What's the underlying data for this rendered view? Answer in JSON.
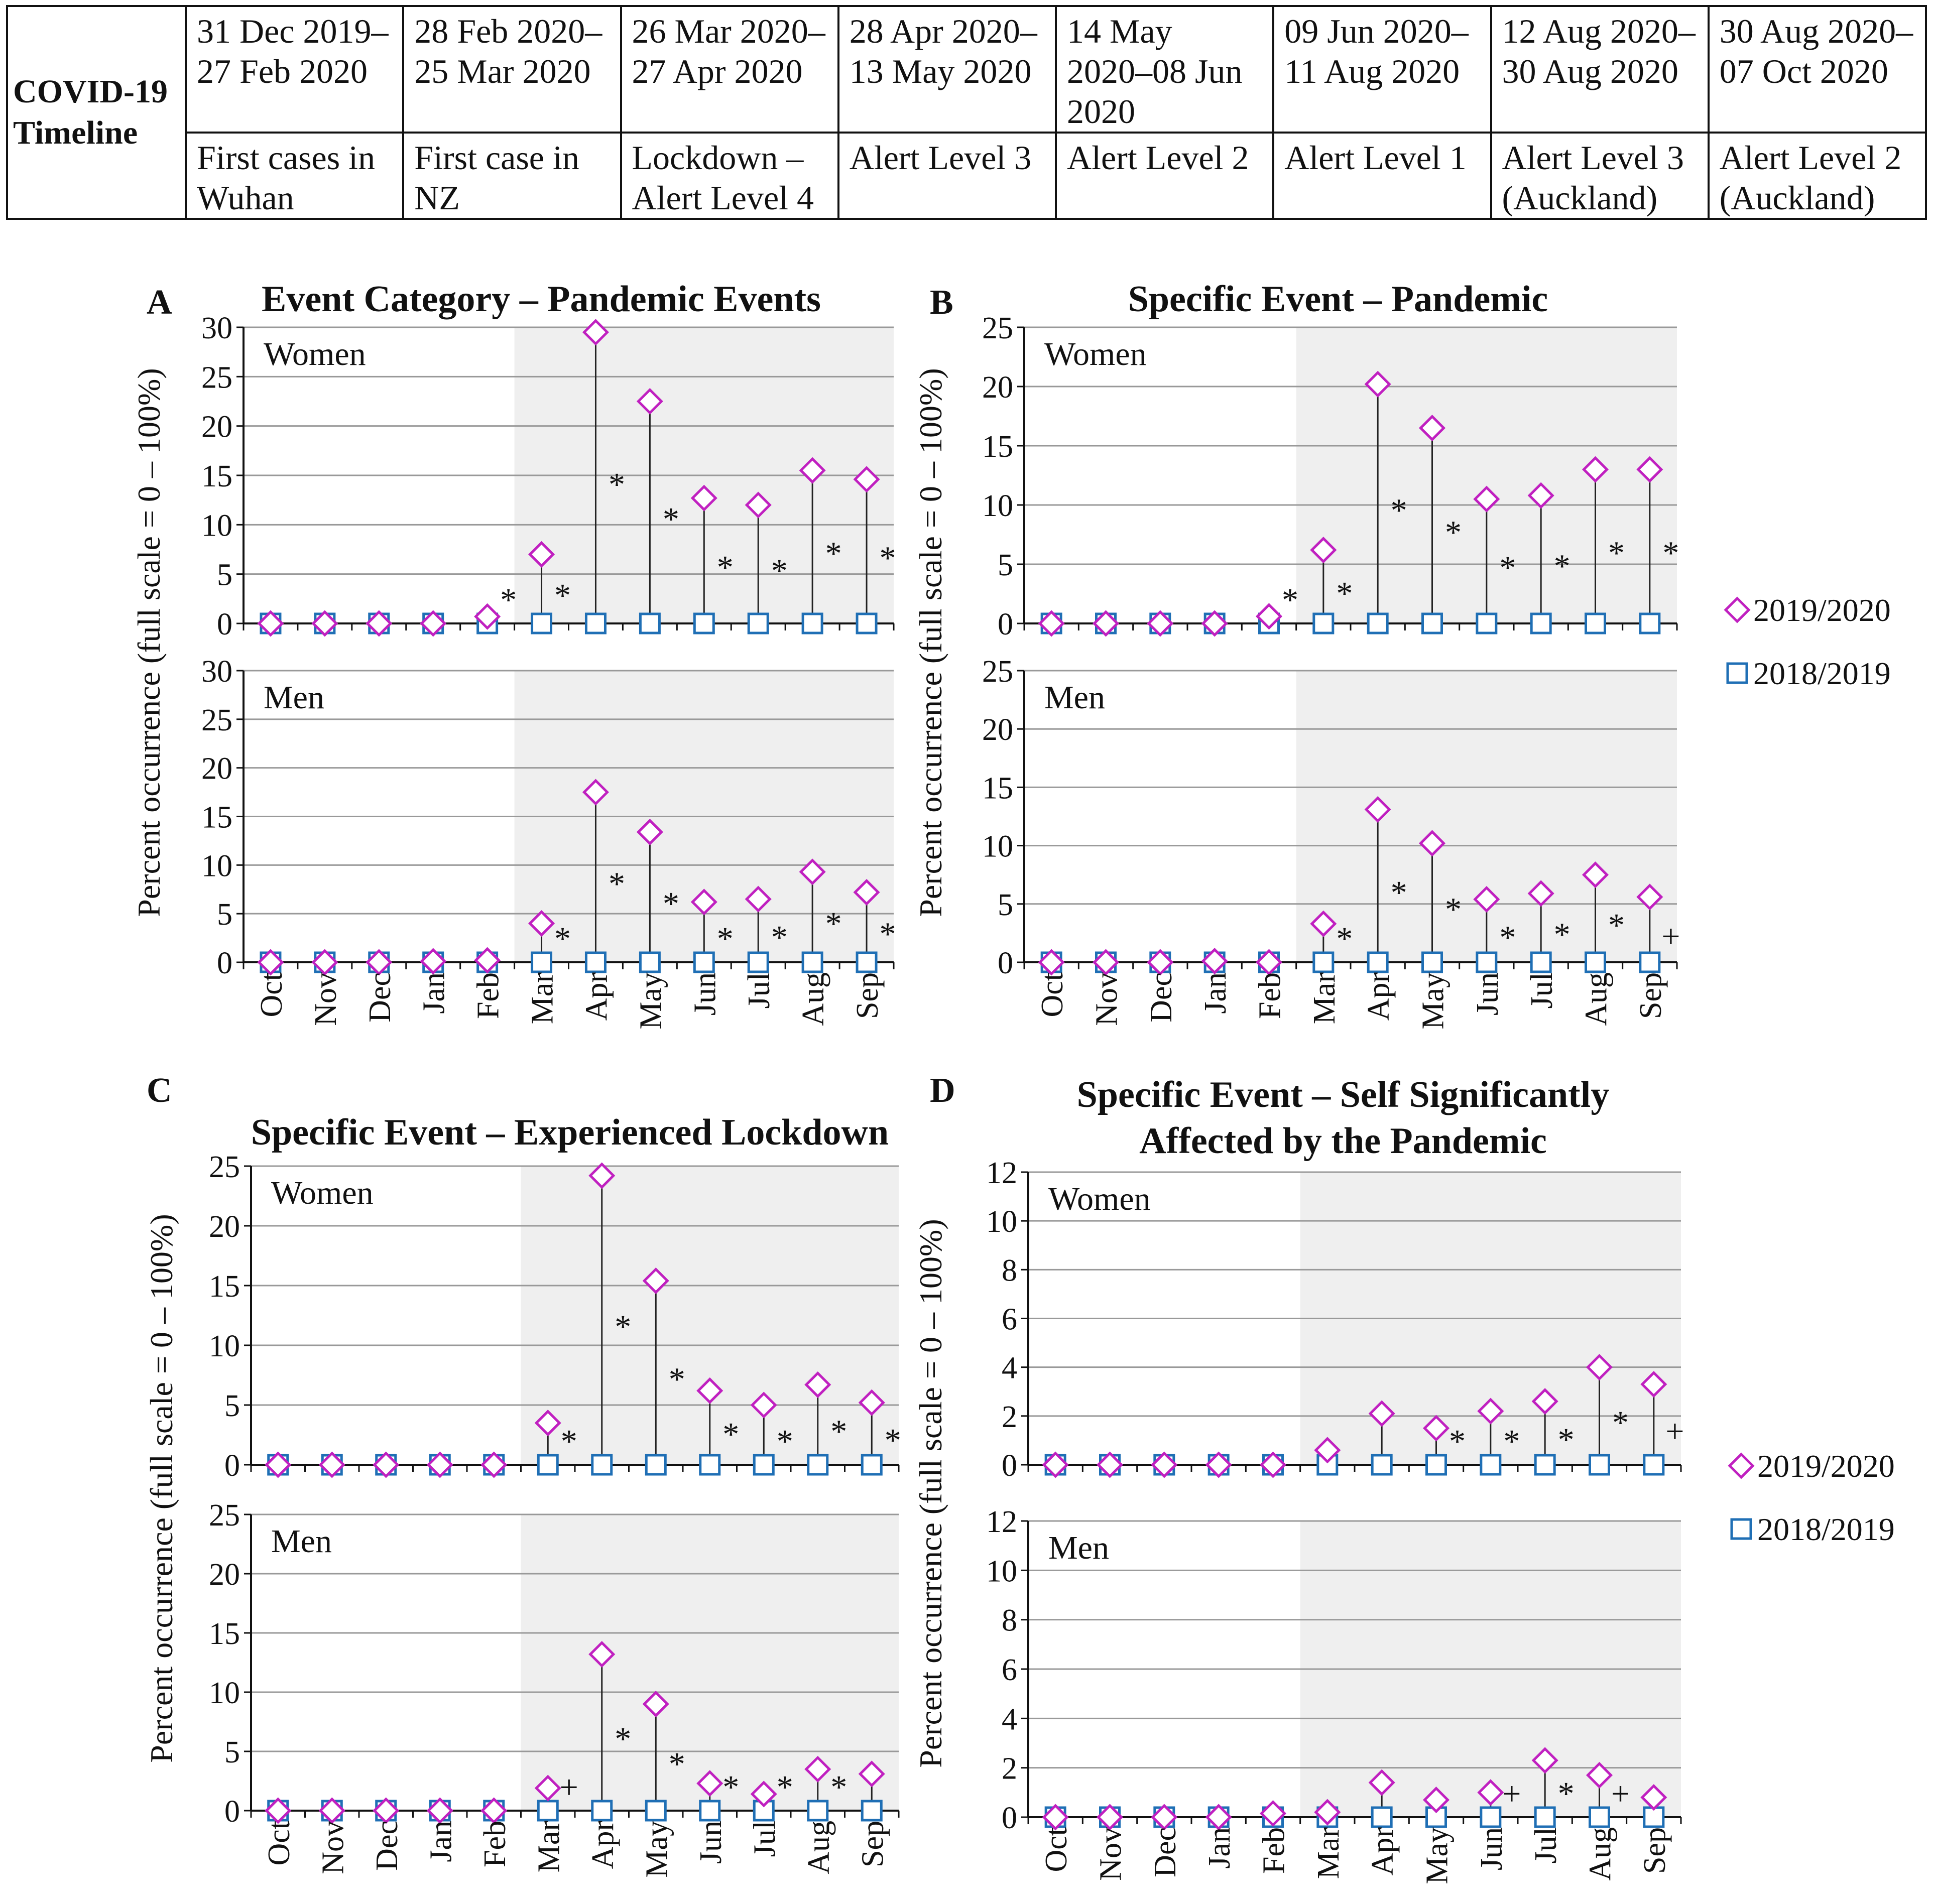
{
  "timeline": {
    "heading_line1": "COVID-19",
    "heading_line2": "Timeline",
    "periods": [
      {
        "dates": "31 Dec 2019–27 Feb 2020",
        "event": "First cases in Wuhan"
      },
      {
        "dates": "28 Feb 2020–25 Mar 2020",
        "event": "First case in NZ"
      },
      {
        "dates": "26 Mar 2020–27 Apr 2020",
        "event": "Lockdown – Alert Level 4"
      },
      {
        "dates": "28 Apr 2020–13 May 2020",
        "event": "Alert Level 3"
      },
      {
        "dates": "14 May 2020–08 Jun 2020",
        "event": "Alert Level 2"
      },
      {
        "dates": "09 Jun 2020–11 Aug 2020",
        "event": "Alert Level 1"
      },
      {
        "dates": "12 Aug 2020–30 Aug 2020",
        "event": "Alert Level 3 (Auckland)"
      },
      {
        "dates": "30 Aug 2020–07 Oct 2020",
        "event": "Alert Level 2 (Auckland)"
      }
    ]
  },
  "colors": {
    "series_2019_2020": "#c020c0",
    "series_2018_2019": "#1f6fb5",
    "shading": "#efefef",
    "gridline": "#999999",
    "stem": "#222222"
  },
  "chart_data": [
    {
      "type": "scatter",
      "panel_letter": "A",
      "title": "Event Category – Pandemic Events",
      "ylabel": "Percent occurrence (full scale = 0 – 100%)",
      "categories": [
        "Oct",
        "Nov",
        "Dec",
        "Jan",
        "Feb",
        "Mar",
        "Apr",
        "May",
        "Jun",
        "Jul",
        "Aug",
        "Sep"
      ],
      "shaded_from": "Mar",
      "ylim": [
        0,
        30
      ],
      "yticks": [
        "0",
        "5",
        "10",
        "15",
        "20",
        "25",
        "30"
      ],
      "legend": [
        "2019/2020",
        "2018/2019"
      ],
      "subplots": [
        {
          "label": "Women",
          "series": [
            {
              "name": "2019/2020",
              "values": [
                0,
                0,
                0,
                0,
                0.7,
                7.0,
                29.5,
                22.5,
                12.7,
                12.0,
                15.5,
                14.6
              ]
            },
            {
              "name": "2018/2019",
              "values": [
                0,
                0,
                0,
                0,
                0,
                0,
                0,
                0,
                0,
                0,
                0,
                0
              ]
            }
          ],
          "markers": [
            "",
            "",
            "",
            "",
            "*",
            "*",
            "*",
            "*",
            "*",
            "*",
            "*",
            "*"
          ]
        },
        {
          "label": "Men",
          "series": [
            {
              "name": "2019/2020",
              "values": [
                0,
                0,
                0,
                0.1,
                0.2,
                4.0,
                17.5,
                13.4,
                6.2,
                6.5,
                9.3,
                7.2
              ]
            },
            {
              "name": "2018/2019",
              "values": [
                0,
                0,
                0,
                0,
                0,
                0,
                0,
                0,
                0,
                0,
                0,
                0
              ]
            }
          ],
          "markers": [
            "",
            "",
            "",
            "",
            "",
            "*",
            "*",
            "*",
            "*",
            "*",
            "*",
            "*"
          ]
        }
      ]
    },
    {
      "type": "scatter",
      "panel_letter": "B",
      "title": "Specific Event – Pandemic",
      "ylabel": "Percent occurrence (full scale = 0 – 100%)",
      "categories": [
        "Oct",
        "Nov",
        "Dec",
        "Jan",
        "Feb",
        "Mar",
        "Apr",
        "May",
        "Jun",
        "Jul",
        "Aug",
        "Sep"
      ],
      "shaded_from": "Mar",
      "ylim": [
        0,
        25
      ],
      "yticks": [
        "0",
        "5",
        "10",
        "15",
        "20",
        "25"
      ],
      "legend": [
        "2019/2020",
        "2018/2019"
      ],
      "subplots": [
        {
          "label": "Women",
          "series": [
            {
              "name": "2019/2020",
              "values": [
                0,
                0,
                0,
                0,
                0.6,
                6.2,
                20.2,
                16.5,
                10.5,
                10.8,
                13.0,
                13.0
              ]
            },
            {
              "name": "2018/2019",
              "values": [
                0,
                0,
                0,
                0,
                0,
                0,
                0,
                0,
                0,
                0,
                0,
                0
              ]
            }
          ],
          "markers": [
            "",
            "",
            "",
            "",
            "*",
            "*",
            "*",
            "*",
            "*",
            "*",
            "*",
            "*"
          ]
        },
        {
          "label": "Men",
          "series": [
            {
              "name": "2019/2020",
              "values": [
                0,
                0,
                0,
                0.1,
                0,
                3.3,
                13.1,
                10.2,
                5.4,
                5.9,
                7.5,
                5.6
              ]
            },
            {
              "name": "2018/2019",
              "values": [
                0,
                0,
                0,
                0,
                0,
                0,
                0,
                0,
                0,
                0,
                0,
                0
              ]
            }
          ],
          "markers": [
            "",
            "",
            "",
            "",
            "",
            "*",
            "*",
            "*",
            "*",
            "*",
            "*",
            "+"
          ]
        }
      ]
    },
    {
      "type": "scatter",
      "panel_letter": "C",
      "title": "Specific Event – Experienced Lockdown",
      "ylabel": "Percent occurrence (full scale = 0 – 100%)",
      "categories": [
        "Oct",
        "Nov",
        "Dec",
        "Jan",
        "Feb",
        "Mar",
        "Apr",
        "May",
        "Jun",
        "Jul",
        "Aug",
        "Sep"
      ],
      "shaded_from": "Mar",
      "ylim": [
        0,
        25
      ],
      "yticks": [
        "0",
        "5",
        "10",
        "15",
        "20",
        "25"
      ],
      "legend": [
        "2019/2020",
        "2018/2019"
      ],
      "subplots": [
        {
          "label": "Women",
          "series": [
            {
              "name": "2019/2020",
              "values": [
                0,
                0,
                0,
                0,
                0,
                3.5,
                24.2,
                15.4,
                6.2,
                5.0,
                6.7,
                5.2
              ]
            },
            {
              "name": "2018/2019",
              "values": [
                0,
                0,
                0,
                0,
                0,
                0,
                0,
                0,
                0,
                0,
                0,
                0
              ]
            }
          ],
          "markers": [
            "",
            "",
            "",
            "",
            "",
            "*",
            "*",
            "*",
            "*",
            "*",
            "*",
            "*"
          ]
        },
        {
          "label": "Men",
          "series": [
            {
              "name": "2019/2020",
              "values": [
                0,
                0,
                0,
                0,
                0,
                1.9,
                13.2,
                9.0,
                2.3,
                1.4,
                3.5,
                3.1
              ]
            },
            {
              "name": "2018/2019",
              "values": [
                0,
                0,
                0,
                0,
                0,
                0,
                0,
                0,
                0,
                0,
                0,
                0
              ]
            }
          ],
          "markers": [
            "",
            "",
            "",
            "",
            "",
            "+",
            "*",
            "*",
            "*",
            "*",
            "*",
            ""
          ]
        }
      ]
    },
    {
      "type": "scatter",
      "panel_letter": "D",
      "title": "Specific Event – Self Significantly Affected by the Pandemic",
      "title_line1": "Specific Event – Self Significantly",
      "title_line2": "Affected by the Pandemic",
      "ylabel": "Percent occurrence (full scale = 0 – 100%)",
      "categories": [
        "Oct",
        "Nov",
        "Dec",
        "Jan",
        "Feb",
        "Mar",
        "Apr",
        "May",
        "Jun",
        "Jul",
        "Aug",
        "Sep"
      ],
      "shaded_from": "Mar",
      "ylim": [
        0,
        12
      ],
      "yticks": [
        "0",
        "2",
        "4",
        "6",
        "8",
        "10",
        "12"
      ],
      "legend": [
        "2019/2020",
        "2018/2019"
      ],
      "subplots": [
        {
          "label": "Women",
          "series": [
            {
              "name": "2019/2020",
              "values": [
                0,
                0,
                0,
                0,
                0,
                0.6,
                2.1,
                1.5,
                2.2,
                2.6,
                4.0,
                3.3
              ]
            },
            {
              "name": "2018/2019",
              "values": [
                0,
                0,
                0,
                0,
                0,
                0,
                0,
                0,
                0,
                0,
                0,
                0
              ]
            }
          ],
          "markers": [
            "",
            "",
            "",
            "",
            "",
            "",
            "",
            "*",
            "*",
            "*",
            "*",
            "+"
          ]
        },
        {
          "label": "Men",
          "series": [
            {
              "name": "2019/2020",
              "values": [
                0,
                0,
                0,
                0,
                0.15,
                0.2,
                1.4,
                0.7,
                1.0,
                2.3,
                1.7,
                0.8
              ]
            },
            {
              "name": "2018/2019",
              "values": [
                0,
                0,
                0,
                0,
                0,
                0,
                0,
                0,
                0,
                0,
                0,
                0
              ]
            }
          ],
          "markers": [
            "",
            "",
            "",
            "",
            "",
            "",
            "",
            "",
            "+",
            "*",
            "+",
            ""
          ]
        }
      ]
    }
  ]
}
